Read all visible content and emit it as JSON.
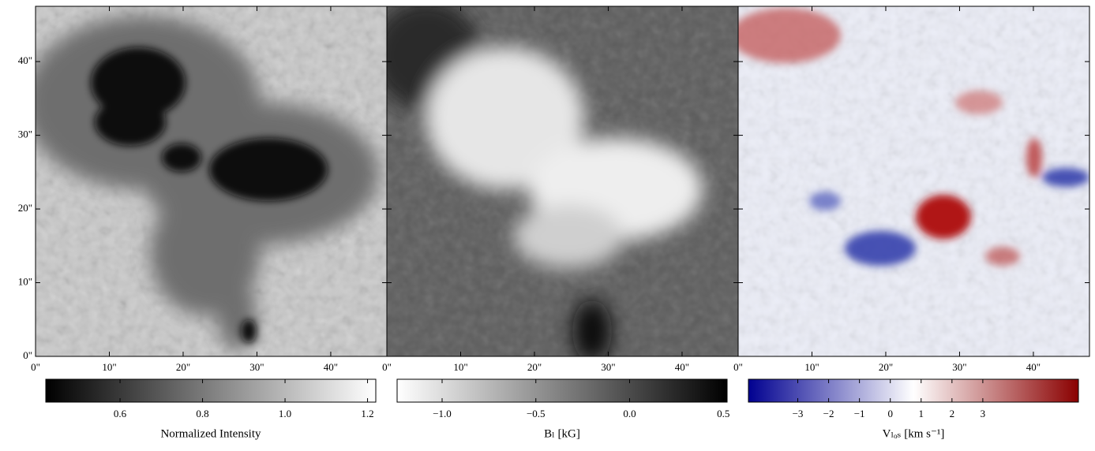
{
  "chart_data": [
    {
      "type": "image",
      "xlim": [
        0,
        47.6
      ],
      "ylim": [
        0,
        47.5
      ],
      "xticks": [
        {
          "value": 0,
          "label": "0\""
        },
        {
          "value": 10,
          "label": "10\""
        },
        {
          "value": 20,
          "label": "20\""
        },
        {
          "value": 30,
          "label": "30\""
        },
        {
          "value": 40,
          "label": "40\""
        }
      ],
      "yticks": [
        {
          "value": 0,
          "label": "0\""
        },
        {
          "value": 10,
          "label": "10\""
        },
        {
          "value": 20,
          "label": "20\""
        },
        {
          "value": 30,
          "label": "30\""
        },
        {
          "value": 40,
          "label": "40\""
        }
      ],
      "colorbar": {
        "label": "Normalized Intensity",
        "clim": [
          0.42,
          1.22
        ],
        "colormap": [
          "#000000",
          "#ffffff"
        ],
        "ticks": [
          0.6,
          0.8,
          {
            "value": 1,
            "label": "1.0"
          },
          1.2
        ]
      }
    },
    {
      "type": "image",
      "xlim": [
        0,
        47.6
      ],
      "ylim": [
        0,
        47.5
      ],
      "xticks": [
        {
          "value": 0,
          "label": "0\""
        },
        {
          "value": 10,
          "label": "10\""
        },
        {
          "value": 20,
          "label": "20\""
        },
        {
          "value": 30,
          "label": "30\""
        },
        {
          "value": 40,
          "label": "40\""
        }
      ],
      "colorbar": {
        "label": "Bₗ [kG]",
        "clim": [
          -1.24,
          0.52
        ],
        "colormap": [
          "#ffffff",
          "#000000"
        ],
        "ticks": [
          {
            "value": -1,
            "label": "−1.0"
          },
          {
            "value": -0.5,
            "label": "−0.5"
          },
          {
            "value": 0,
            "label": "0.0"
          },
          0.5
        ]
      }
    },
    {
      "type": "image",
      "xlim": [
        0,
        47.6
      ],
      "ylim": [
        0,
        47.5
      ],
      "xticks": [
        {
          "value": 0,
          "label": "0\""
        },
        {
          "value": 10,
          "label": "10\""
        },
        {
          "value": 20,
          "label": "20\""
        },
        {
          "value": 30,
          "label": "30\""
        },
        {
          "value": 40,
          "label": "40\""
        }
      ],
      "colorbar": {
        "label": "Vₗₒₛ [km s⁻¹]",
        "clim": [
          -4.6,
          6.1
        ],
        "colormap": [
          "#000090",
          "#ffffff",
          "#8a0000"
        ],
        "ticks": [
          {
            "value": -3,
            "label": "−3"
          },
          {
            "value": -2,
            "label": "−2"
          },
          {
            "value": -1,
            "label": "−1"
          },
          0,
          1,
          2,
          3
        ]
      }
    }
  ]
}
